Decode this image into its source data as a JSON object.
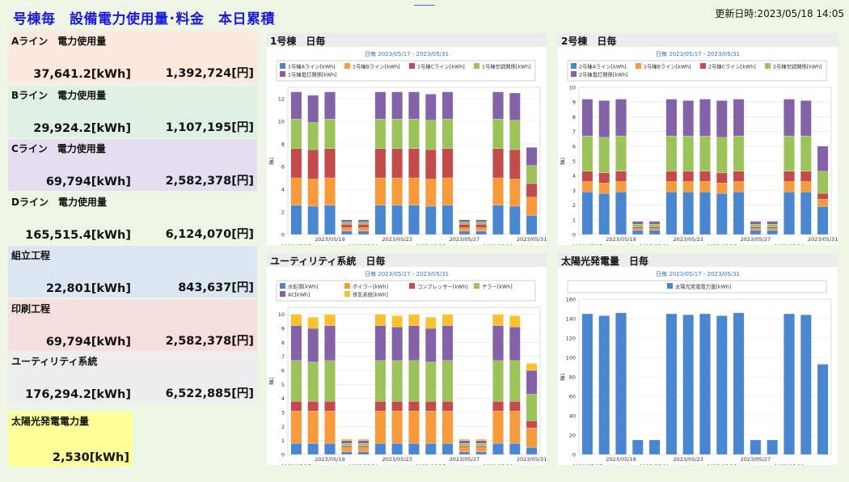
{
  "header": {
    "title": "号棟毎　設備電力使用量･料金　本日累積",
    "updated": "更新日時:2023/05/18 14:05"
  },
  "kpis": [
    {
      "label": "Aライン　電力使用量",
      "kwh": "37,641.2[kWh]",
      "yen": "1,392,724[円]",
      "color": "#fce8dc"
    },
    {
      "label": "Bライン　電力使用量",
      "kwh": "29,924.2[kWh]",
      "yen": "1,107,195[円]",
      "color": "#e0f0e4"
    },
    {
      "label": "Cライン　電力使用量",
      "kwh": "69,794[kWh]",
      "yen": "2,582,378[円]",
      "color": "#e4def0"
    },
    {
      "label": "Dライン　電力使用量",
      "kwh": "165,515.4[kWh]",
      "yen": "6,124,070[円]",
      "color": "#eef5e4"
    },
    {
      "label": "組立工程",
      "kwh": "22,801[kWh]",
      "yen": "843,637[円]",
      "color": "#dce6f0"
    },
    {
      "label": "印刷工程",
      "kwh": "69,794[kWh]",
      "yen": "2,582,378[円]",
      "color": "#f4dede"
    },
    {
      "label": "ユーティリティ系統",
      "kwh": "176,294.2[kWh]",
      "yen": "6,522,885[円]",
      "color": "#ededed"
    }
  ],
  "solar_kpi": {
    "label": "太陽光発電電力量",
    "kwh": "2,530[kWh]"
  },
  "panels": {
    "p1": {
      "title": "1号棟　日毎"
    },
    "p2": {
      "title": "2号棟　日毎"
    },
    "p3": {
      "title": "ユーティリティ系統　日毎"
    },
    "p4": {
      "title": "太陽光発電量　日毎"
    }
  },
  "chart_data": [
    {
      "type": "bar",
      "stacked": true,
      "id": "p1",
      "title": "日毎 2023/05/17 - 2023/05/31",
      "ylabel": "軸1",
      "categories": [
        "2023/05/17",
        "2023/05/18",
        "2023/05/19",
        "2023/05/20",
        "2023/05/21",
        "2023/05/22",
        "2023/05/23",
        "2023/05/24",
        "2023/05/25",
        "2023/05/26",
        "2023/05/27",
        "2023/05/28",
        "2023/05/29",
        "2023/05/30",
        "2023/05/31"
      ],
      "x_tick_labels": [
        "2023/05/17",
        "2023/05/19",
        "2023/05/21",
        "2023/05/23",
        "2023/05/25",
        "2023/05/27",
        "2023/05/29",
        "2023/05/31"
      ],
      "ylim": [
        0,
        13
      ],
      "yticks": [
        0,
        2,
        4,
        6,
        8,
        10,
        12
      ],
      "series": [
        {
          "name": "1号棟Aライン[kWh]",
          "color": "#4a86d0",
          "values": [
            2.6,
            2.5,
            2.6,
            0.3,
            0.3,
            2.6,
            2.6,
            2.6,
            2.5,
            2.6,
            0.3,
            0.3,
            2.6,
            2.5,
            1.7
          ]
        },
        {
          "name": "1号棟Bライン[kWh]",
          "color": "#f79a3b",
          "values": [
            2.4,
            2.4,
            2.4,
            0.3,
            0.3,
            2.4,
            2.4,
            2.4,
            2.4,
            2.4,
            0.3,
            0.3,
            2.4,
            2.4,
            1.6
          ]
        },
        {
          "name": "1号棟Cライン[kWh]",
          "color": "#c44b4b",
          "values": [
            2.6,
            2.6,
            2.6,
            0.3,
            0.3,
            2.6,
            2.6,
            2.6,
            2.6,
            2.6,
            0.3,
            0.3,
            2.6,
            2.6,
            1.2
          ]
        },
        {
          "name": "1号棟空調関係[kWh]",
          "color": "#9bc35a",
          "values": [
            2.6,
            2.4,
            2.6,
            0.2,
            0.2,
            2.6,
            2.6,
            2.6,
            2.6,
            2.6,
            0.2,
            0.2,
            2.6,
            2.6,
            1.6
          ]
        },
        {
          "name": "1号棟電灯関係[kWh]",
          "color": "#8462a8",
          "values": [
            2.4,
            2.4,
            2.4,
            0.2,
            0.2,
            2.4,
            2.4,
            2.4,
            2.3,
            2.4,
            0.2,
            0.2,
            2.4,
            2.4,
            1.6
          ]
        }
      ]
    },
    {
      "type": "bar",
      "stacked": true,
      "id": "p2",
      "title": "日毎 2023/05/17 - 2023/05/31",
      "ylabel": "軸1",
      "categories": [
        "2023/05/17",
        "2023/05/18",
        "2023/05/19",
        "2023/05/20",
        "2023/05/21",
        "2023/05/22",
        "2023/05/23",
        "2023/05/24",
        "2023/05/25",
        "2023/05/26",
        "2023/05/27",
        "2023/05/28",
        "2023/05/29",
        "2023/05/30",
        "2023/05/31"
      ],
      "x_tick_labels": [
        "2023/05/17",
        "2023/05/19",
        "2023/05/21",
        "2023/05/23",
        "2023/05/25",
        "2023/05/27",
        "2023/05/29",
        "2023/05/31"
      ],
      "ylim": [
        0,
        10
      ],
      "yticks": [
        0,
        1,
        2,
        3,
        4,
        5,
        6,
        7,
        8,
        9,
        10
      ],
      "series": [
        {
          "name": "2号棟Aライン[kWh]",
          "color": "#4a86d0",
          "values": [
            2.9,
            2.8,
            2.9,
            0.3,
            0.3,
            2.9,
            2.9,
            2.9,
            2.8,
            2.9,
            0.3,
            0.3,
            2.9,
            2.9,
            1.9
          ]
        },
        {
          "name": "2号棟Bライン[kWh]",
          "color": "#f79a3b",
          "values": [
            0.7,
            0.7,
            0.7,
            0.1,
            0.1,
            0.7,
            0.7,
            0.7,
            0.7,
            0.7,
            0.1,
            0.1,
            0.7,
            0.7,
            0.5
          ]
        },
        {
          "name": "2号棟Cライン[kWh]",
          "color": "#c44b4b",
          "values": [
            0.7,
            0.7,
            0.7,
            0.1,
            0.1,
            0.7,
            0.7,
            0.7,
            0.7,
            0.7,
            0.1,
            0.1,
            0.7,
            0.7,
            0.4
          ]
        },
        {
          "name": "2号棟空調関係[kWh]",
          "color": "#9bc35a",
          "values": [
            2.4,
            2.4,
            2.4,
            0.2,
            0.2,
            2.4,
            2.4,
            2.4,
            2.4,
            2.4,
            0.2,
            0.2,
            2.4,
            2.4,
            1.5
          ]
        },
        {
          "name": "2号棟電灯関係[kWh]",
          "color": "#8462a8",
          "values": [
            2.5,
            2.5,
            2.5,
            0.2,
            0.2,
            2.5,
            2.4,
            2.5,
            2.5,
            2.5,
            0.2,
            0.2,
            2.5,
            2.4,
            1.7
          ]
        }
      ]
    },
    {
      "type": "bar",
      "stacked": true,
      "id": "p3",
      "title": "日毎 2023/05/17 - 2023/05/31",
      "ylabel": "軸1",
      "categories": [
        "2023/05/17",
        "2023/05/18",
        "2023/05/19",
        "2023/05/20",
        "2023/05/21",
        "2023/05/22",
        "2023/05/23",
        "2023/05/24",
        "2023/05/25",
        "2023/05/26",
        "2023/05/27",
        "2023/05/28",
        "2023/05/29",
        "2023/05/30",
        "2023/05/31"
      ],
      "x_tick_labels": [
        "2023/05/17",
        "2023/05/19",
        "2023/05/21",
        "2023/05/23",
        "2023/05/25",
        "2023/05/27",
        "2023/05/29",
        "2023/05/31"
      ],
      "ylim": [
        0,
        10.5
      ],
      "yticks": [
        0,
        1,
        2,
        3,
        4,
        5,
        6,
        7,
        8,
        9,
        10
      ],
      "series": [
        {
          "name": "水処理[kWh]",
          "color": "#4a86d0",
          "values": [
            0.8,
            0.8,
            0.8,
            0.2,
            0.2,
            0.8,
            0.8,
            0.8,
            0.8,
            0.8,
            0.2,
            0.2,
            0.8,
            0.8,
            0.5
          ]
        },
        {
          "name": "ボイラー[kWh]",
          "color": "#f79a3b",
          "values": [
            2.3,
            2.3,
            2.3,
            0.3,
            0.3,
            2.3,
            2.3,
            2.3,
            2.3,
            2.3,
            0.3,
            0.3,
            2.3,
            2.3,
            1.4
          ]
        },
        {
          "name": "コンプレッサー[kWh]",
          "color": "#c44b4b",
          "values": [
            0.7,
            0.7,
            0.7,
            0.1,
            0.1,
            0.7,
            0.7,
            0.7,
            0.7,
            0.7,
            0.1,
            0.1,
            0.7,
            0.7,
            0.5
          ]
        },
        {
          "name": "チラー[kWh]",
          "color": "#9bc35a",
          "values": [
            2.9,
            2.8,
            2.9,
            0.2,
            0.2,
            2.9,
            2.9,
            2.9,
            2.8,
            2.9,
            0.2,
            0.2,
            2.9,
            2.9,
            1.9
          ]
        },
        {
          "name": "AC[kWh]",
          "color": "#8462a8",
          "values": [
            2.5,
            2.4,
            2.5,
            0.2,
            0.2,
            2.5,
            2.4,
            2.5,
            2.4,
            2.5,
            0.2,
            0.2,
            2.5,
            2.4,
            1.7
          ]
        },
        {
          "name": "排気系統[kWh]",
          "color": "#fbc02d",
          "values": [
            0.8,
            0.8,
            0.8,
            0.1,
            0.1,
            0.8,
            0.8,
            0.8,
            0.8,
            0.8,
            0.1,
            0.1,
            0.8,
            0.8,
            0.5
          ]
        }
      ]
    },
    {
      "type": "bar",
      "stacked": false,
      "id": "p4",
      "title": "日毎 2023/05/17 - 2023/05/31",
      "ylabel": "軸1",
      "categories": [
        "2023/05/17",
        "2023/05/18",
        "2023/05/19",
        "2023/05/20",
        "2023/05/21",
        "2023/05/22",
        "2023/05/23",
        "2023/05/24",
        "2023/05/25",
        "2023/05/26",
        "2023/05/27",
        "2023/05/28",
        "2023/05/29",
        "2023/05/30",
        "2023/05/31"
      ],
      "x_tick_labels": [
        "2023/05/17",
        "2023/05/19",
        "2023/05/21",
        "2023/05/23",
        "2023/05/25",
        "2023/05/27",
        "2023/05/29"
      ],
      "ylim": [
        0,
        160
      ],
      "yticks": [
        0,
        20,
        40,
        60,
        80,
        100,
        120,
        140,
        160
      ],
      "series": [
        {
          "name": "太陽光発電電力量[kWh]",
          "color": "#4a86d0",
          "values": [
            145,
            143,
            146,
            15,
            15,
            145,
            144,
            145,
            143,
            146,
            15,
            15,
            145,
            144,
            93
          ]
        }
      ]
    }
  ]
}
